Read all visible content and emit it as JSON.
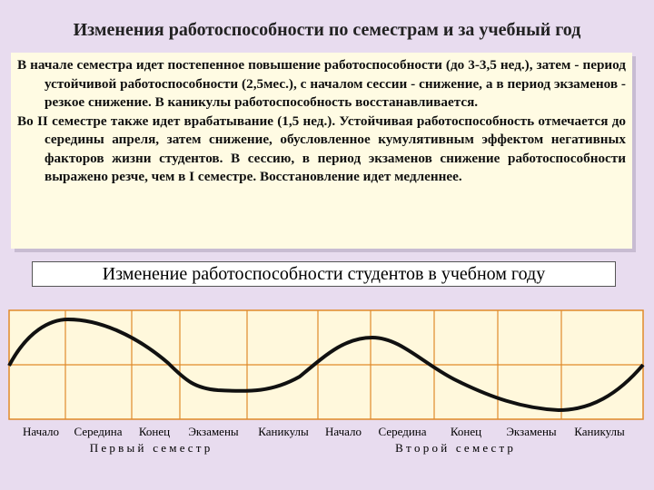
{
  "title": "Изменения работоспособности по семестрам и за учебный год",
  "paragraphs": [
    "В начале семестра идет постепенное повышение работоспособности (до 3-3,5 нед.), затем - период устойчивой работоспособности (2,5мес.), с началом сессии - снижение, а в период экзаменов - резкое снижение. В каникулы работоспособность восстанавливается.",
    "Во II семестре также идет врабатывание (1,5 нед.). Устойчивая работоспособность отмечается до середины апреля, затем снижение, обусловленное кумулятивным эффектом негативных факторов жизни студентов. В сессию, в период экзаменов снижение работоспособности выражено резче, чем в I семестре. Восстановление идет медленнее."
  ],
  "diagram": {
    "title": "Изменение работоспособности студентов в учебном году",
    "labels": [
      "Начало",
      "Середина",
      "Конец",
      "Экзамены",
      "Каникулы",
      "Начало",
      "Середина",
      "Конец",
      "Экзамены",
      "Каникулы"
    ],
    "semesters": [
      "П е р в ы й   с е м е с т р",
      "В т о р о й   с е м е с т р"
    ]
  }
}
